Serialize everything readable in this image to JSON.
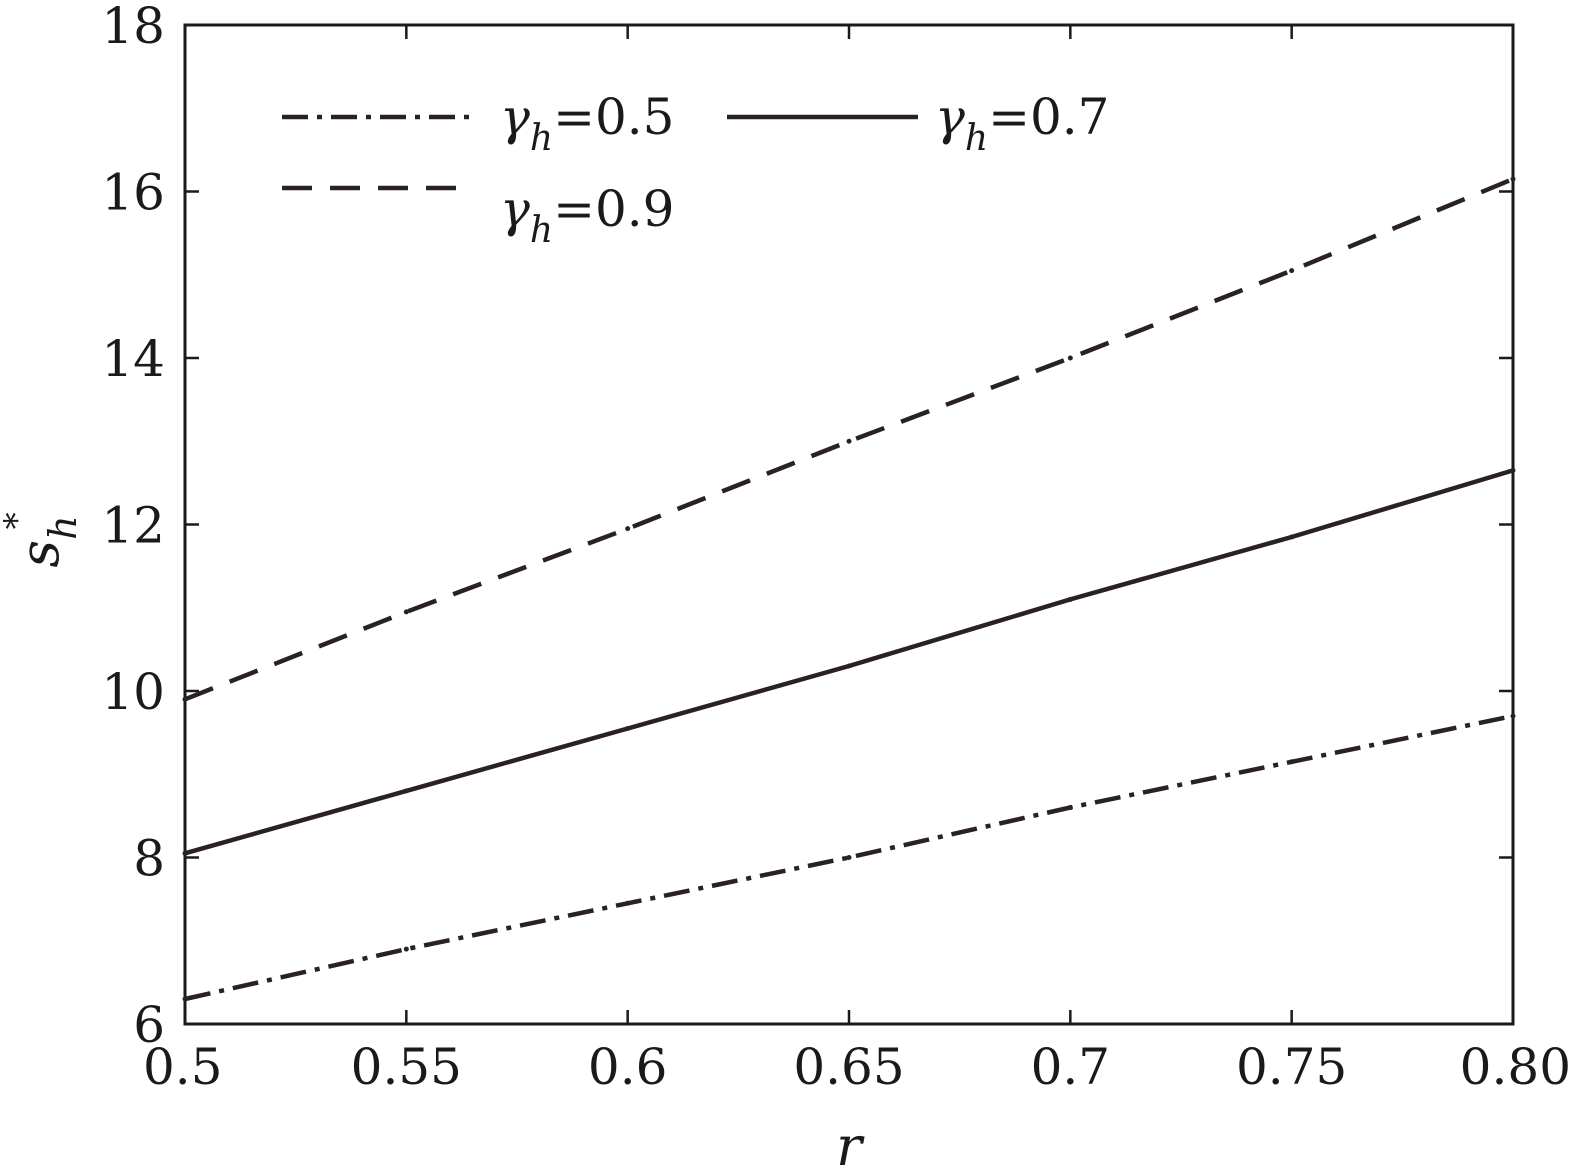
{
  "chart_data": {
    "type": "line",
    "xlabel": "r",
    "ylabel": "s",
    "ylabel_sub": "h",
    "ylabel_sup": "*",
    "xlim": [
      0.5,
      0.8
    ],
    "ylim": [
      6,
      18
    ],
    "xticks": [
      0.5,
      0.55,
      0.6,
      0.65,
      0.7,
      0.75,
      0.8
    ],
    "xtick_labels": [
      "0.5",
      "0.55",
      "0.6",
      "0.65",
      "0.7",
      "0.75",
      "0.80"
    ],
    "yticks": [
      6,
      8,
      10,
      12,
      14,
      16,
      18
    ],
    "ytick_labels": [
      "6",
      "8",
      "10",
      "12",
      "14",
      "16",
      "18"
    ],
    "grid": false,
    "legend_position": "top-left",
    "x": [
      0.5,
      0.55,
      0.6,
      0.65,
      0.7,
      0.75,
      0.8
    ],
    "series": [
      {
        "name": "γh=0.5",
        "legend_symbol": "γ",
        "legend_sub": "h",
        "legend_value": "=0.5",
        "style": "dashdot",
        "color": "#2a2222",
        "values": [
          6.3,
          6.9,
          7.45,
          8.0,
          8.6,
          9.15,
          9.7
        ]
      },
      {
        "name": "γh=0.7",
        "legend_symbol": "γ",
        "legend_sub": "h",
        "legend_value": "=0.7",
        "style": "solid",
        "color": "#2a2222",
        "values": [
          8.05,
          8.8,
          9.55,
          10.3,
          11.1,
          11.85,
          12.65
        ]
      },
      {
        "name": "γh=0.9",
        "legend_symbol": "γ",
        "legend_sub": "h",
        "legend_value": "=0.9",
        "style": "dashed",
        "color": "#2a2222",
        "values": [
          9.9,
          10.95,
          11.95,
          13.0,
          14.0,
          15.05,
          16.15
        ]
      }
    ]
  }
}
